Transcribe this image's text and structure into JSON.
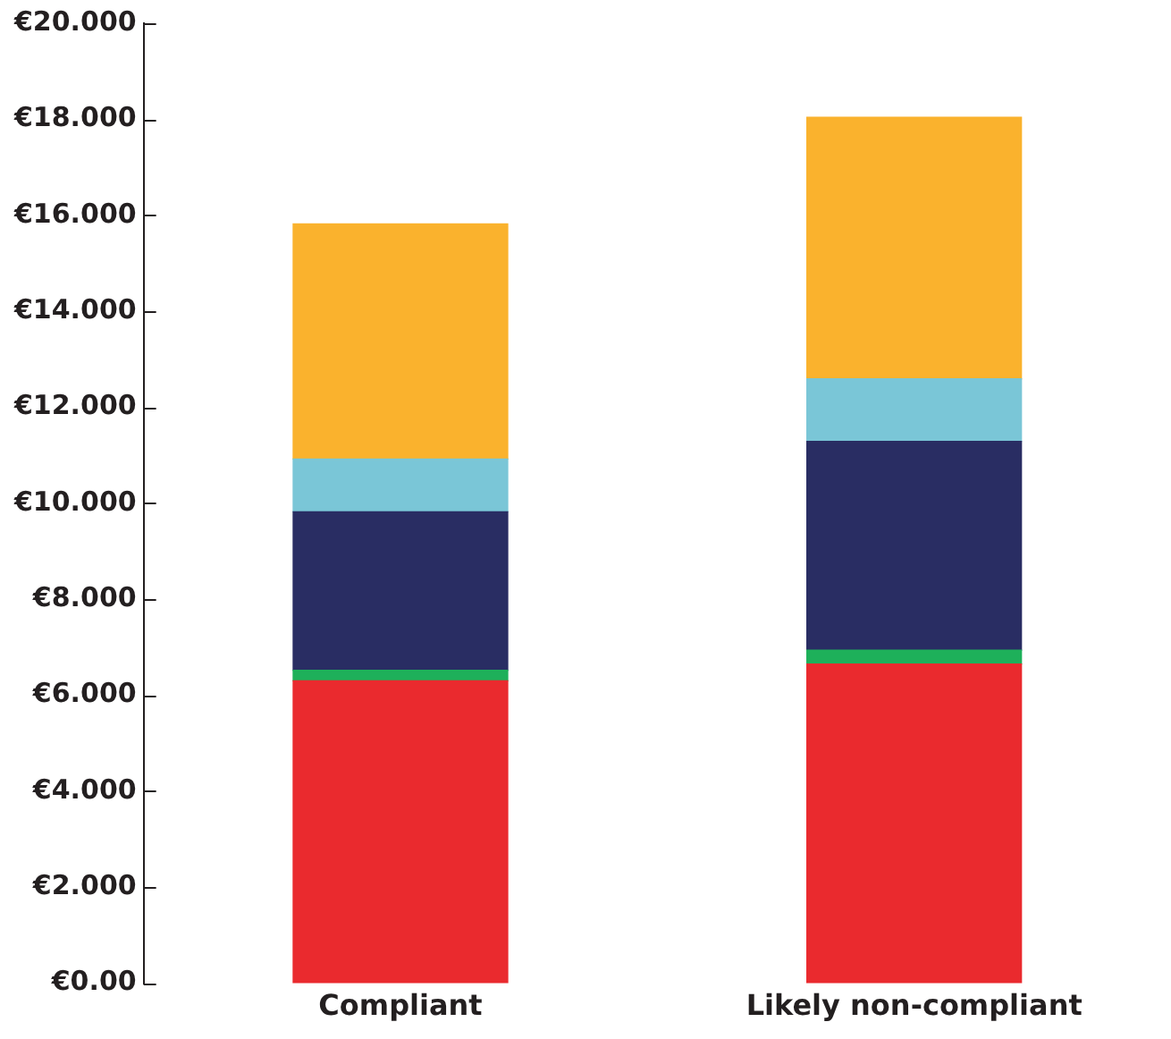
{
  "chart_data": {
    "type": "bar",
    "stacked": true,
    "categories": [
      "Compliant",
      "Likely non-compliant"
    ],
    "series": [
      {
        "color": "#ea2a2e",
        "values": [
          6.3,
          6.65
        ]
      },
      {
        "color": "#1eb05a",
        "values": [
          0.22,
          0.29
        ]
      },
      {
        "color": "#292d63",
        "values": [
          3.3,
          4.35
        ]
      },
      {
        "color": "#7ac6d7",
        "values": [
          1.1,
          1.3
        ]
      },
      {
        "color": "#fab22d",
        "values": [
          4.9,
          5.45
        ]
      }
    ],
    "ylim": [
      0,
      20
    ],
    "yticks": [
      {
        "value": 0,
        "label": "€0.00"
      },
      {
        "value": 2,
        "label": "€2.000"
      },
      {
        "value": 4,
        "label": "€4.000"
      },
      {
        "value": 6,
        "label": "€6.000"
      },
      {
        "value": 8,
        "label": "€8.000"
      },
      {
        "value": 10,
        "label": "€10.000"
      },
      {
        "value": 12,
        "label": "€12.000"
      },
      {
        "value": 14,
        "label": "€14.000"
      },
      {
        "value": 16,
        "label": "€16.000"
      },
      {
        "value": 18,
        "label": "€18.000"
      },
      {
        "value": 20,
        "label": "€20.000"
      }
    ],
    "grid": false,
    "legend": false
  }
}
